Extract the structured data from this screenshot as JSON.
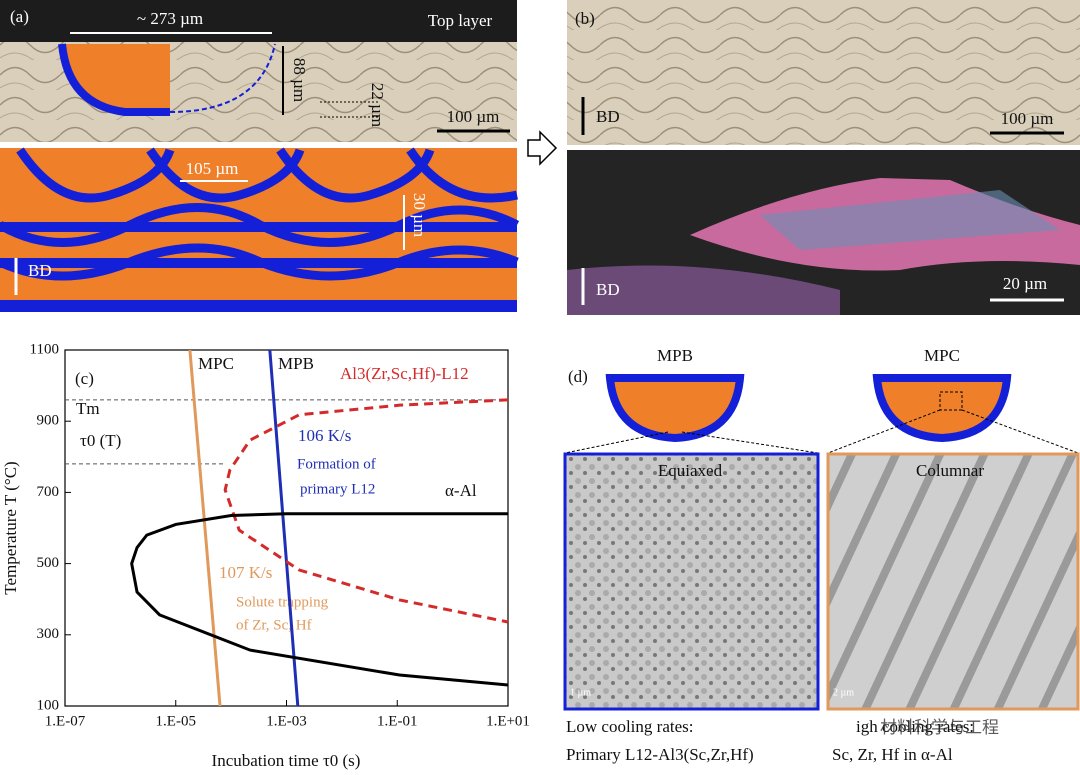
{
  "panel_a": {
    "label": "(a)",
    "width": "~ 273 µm",
    "top_layer": "Top layer",
    "depth": "88 µm",
    "layer": "22 µm",
    "scale": "100 µm",
    "spacing": "105 µm",
    "height": "30 µm",
    "bd": "BD"
  },
  "panel_b": {
    "label": "(b)",
    "bd_top": "BD",
    "scale_top": "100 µm",
    "bd_bottom": "BD",
    "scale_bottom": "20 µm"
  },
  "panel_d": {
    "label": "(d)",
    "mpb": "MPB",
    "mpc": "MPC",
    "equiaxed": "Equiaxed",
    "columnar": "Columnar",
    "scale_left": "1 µm",
    "scale_right": "2 µm",
    "caption_left_1": "Low cooling rates:",
    "caption_left_2": "Primary L12-Al3(Sc,Zr,Hf)",
    "caption_right_1": "igh cooling rates:",
    "caption_right_2": "Sc, Zr, Hf in α-Al"
  },
  "watermark": "材料科学与工程",
  "chart_data": {
    "type": "line",
    "panel_label": "(c)",
    "x_label": "Incubation time τ0 (s)",
    "y_label": "Temperature T (°C)",
    "log_x": true,
    "xlim": [
      1e-07,
      10
    ],
    "ylim": [
      100,
      1100
    ],
    "xticks": [
      {
        "value": 1e-07,
        "label": "1.E-07"
      },
      {
        "value": 1e-05,
        "label": "1.E-05"
      },
      {
        "value": 0.001,
        "label": "1.E-03"
      },
      {
        "value": 0.1,
        "label": "1.E-01"
      },
      {
        "value": 10,
        "label": "1.E+01"
      }
    ],
    "yticks": [
      100,
      300,
      500,
      700,
      900,
      1100
    ],
    "hlines": [
      {
        "y": 960
      },
      {
        "y": 780,
        "xmax": 8e-05
      }
    ],
    "annotations": [
      "Tm",
      "τ0 (T)",
      "106 K/s",
      "Formation of",
      "primary  L12",
      "107 K/s",
      "Solute trapping",
      "of Zr, Sc, Hf"
    ],
    "series": [
      {
        "name": "MPC",
        "color": "#e0995a",
        "x": [
          1.8e-05,
          6.3e-05
        ],
        "values": [
          1100,
          100
        ]
      },
      {
        "name": "MPB",
        "color": "#1f2fb5",
        "x": [
          0.0005,
          0.0016
        ],
        "values": [
          1100,
          100
        ]
      },
      {
        "name": "Al3(Zr,Sc,Hf)-L12",
        "color": "#d42a2a",
        "dashed": true,
        "x": [
          10,
          0.11,
          0.0017,
          0.00022,
          9.5e-05,
          7.8e-05,
          0.00014,
          0.0017,
          0.11,
          10
        ],
        "values": [
          960,
          945,
          918,
          847,
          763,
          707,
          594,
          482,
          398,
          336
        ]
      },
      {
        "name": "α-Al",
        "color": "#000000",
        "x": [
          10,
          0.001,
          0.0001,
          1e-05,
          3e-06,
          2e-06,
          1.6e-06,
          2e-06,
          5.1e-06,
          0.00022,
          0.11,
          10
        ],
        "values": [
          640,
          640,
          635,
          610,
          580,
          545,
          500,
          420,
          356,
          257,
          187,
          159
        ]
      }
    ]
  }
}
